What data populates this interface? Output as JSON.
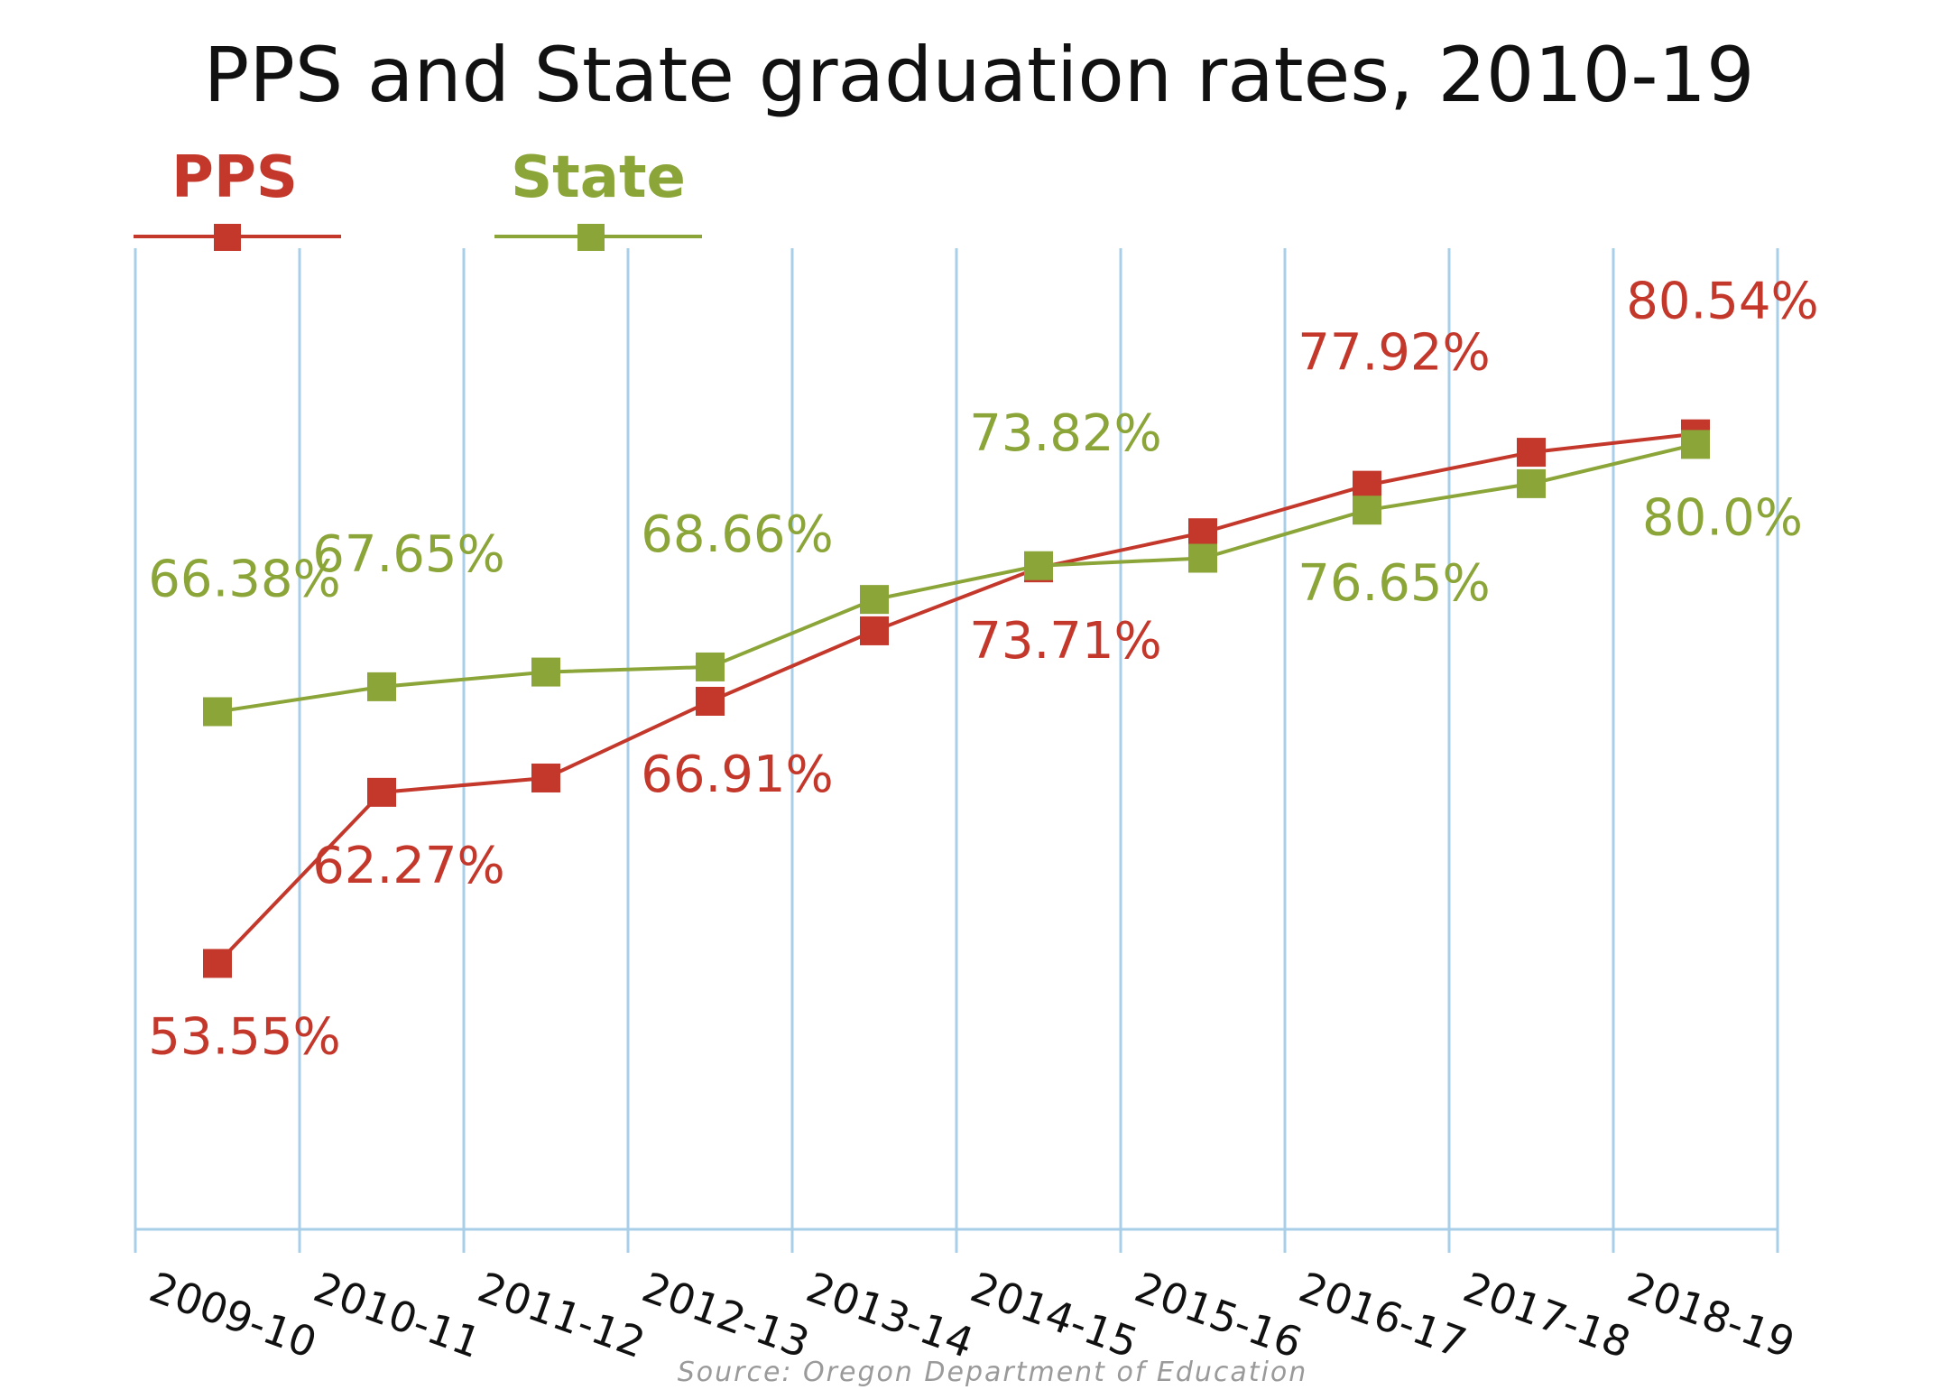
{
  "chart_data": {
    "type": "line",
    "title": "PPS and State graduation rates, 2010-19",
    "source": "Source: Oregon Department of Education",
    "categories": [
      "2009-10",
      "2010-11",
      "2011-12",
      "2012-13",
      "2013-14",
      "2014-15",
      "2015-16",
      "2016-17",
      "2017-18",
      "2018-19"
    ],
    "series": [
      {
        "name": "PPS",
        "color": "#c4372b",
        "values": [
          53.55,
          62.27,
          63.0,
          66.91,
          70.5,
          73.71,
          75.5,
          77.92,
          79.6,
          80.54
        ],
        "labels": [
          "53.55%",
          "62.27%",
          "",
          "66.91%",
          "",
          "73.71%",
          "",
          "77.92%",
          "",
          "80.54%"
        ],
        "label_positions": [
          "below",
          "below",
          "",
          "below",
          "",
          "below",
          "",
          "above",
          "",
          "above"
        ]
      },
      {
        "name": "State",
        "color": "#8ba539",
        "values": [
          66.38,
          67.65,
          68.4,
          68.66,
          72.1,
          73.82,
          74.2,
          76.65,
          78.0,
          80.0
        ],
        "labels": [
          "66.38%",
          "67.65%",
          "",
          "68.66%",
          "",
          "73.82%",
          "",
          "76.65%",
          "",
          "80.0%"
        ],
        "label_positions": [
          "above",
          "above",
          "",
          "above",
          "",
          "above",
          "",
          "below",
          "",
          "below"
        ]
      }
    ],
    "ylim": [
      40,
      90
    ],
    "grid": true,
    "legend": "top-left",
    "grid_color": "#a9cfe8",
    "text_color": "#111111",
    "source_color": "#9a9a9a"
  }
}
